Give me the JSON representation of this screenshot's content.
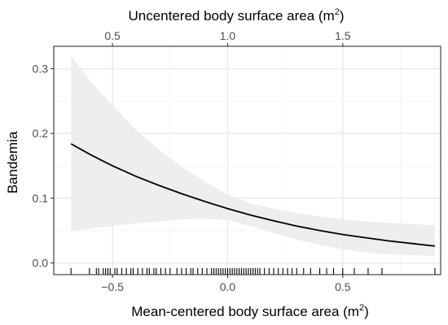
{
  "chart_data": {
    "type": "line",
    "xlabel_bottom": "Mean-centered body surface area (m",
    "xlabel_bottom_sup": "2",
    "xlabel_bottom_close": ")",
    "xlabel_top": "Uncentered body surface area (m",
    "xlabel_top_sup": "2",
    "xlabel_top_close": ")",
    "ylabel": "Bandemia",
    "xlim": [
      -0.755,
      0.925
    ],
    "ylim": [
      -0.018,
      0.3345
    ],
    "grid": true,
    "x_ticks": [
      {
        "value": -0.5,
        "label": "−0.5"
      },
      {
        "value": 0.0,
        "label": "0.0"
      },
      {
        "value": 0.5,
        "label": "0.5"
      }
    ],
    "top_ticks": [
      {
        "value": -0.5,
        "label": "0.5"
      },
      {
        "value": 0.0,
        "label": "1.0"
      },
      {
        "value": 0.5,
        "label": "1.5"
      }
    ],
    "y_ticks": [
      {
        "value": 0.0,
        "label": "0.0"
      },
      {
        "value": 0.1,
        "label": "0.1"
      },
      {
        "value": 0.2,
        "label": "0.2"
      },
      {
        "value": 0.3,
        "label": "0.3"
      }
    ],
    "series": [
      {
        "x": [
          -0.68,
          -0.6,
          -0.5,
          -0.4,
          -0.3,
          -0.2,
          -0.1,
          0.0,
          0.1,
          0.2,
          0.3,
          0.4,
          0.5,
          0.6,
          0.7,
          0.8,
          0.9
        ],
        "y": [
          0.184,
          0.168,
          0.15,
          0.134,
          0.12,
          0.107,
          0.095,
          0.084,
          0.074,
          0.065,
          0.057,
          0.05,
          0.044,
          0.039,
          0.034,
          0.03,
          0.026
        ],
        "lower": [
          0.049,
          0.053,
          0.057,
          0.061,
          0.064,
          0.067,
          0.068,
          0.066,
          0.057,
          0.046,
          0.036,
          0.028,
          0.021,
          0.016,
          0.013,
          0.012,
          0.011
        ],
        "upper": [
          0.32,
          0.283,
          0.243,
          0.206,
          0.176,
          0.149,
          0.126,
          0.106,
          0.092,
          0.084,
          0.077,
          0.072,
          0.067,
          0.064,
          0.062,
          0.06,
          0.058
        ]
      }
    ],
    "rug": [
      -0.68,
      -0.6,
      -0.57,
      -0.56,
      -0.54,
      -0.53,
      -0.52,
      -0.51,
      -0.49,
      -0.48,
      -0.46,
      -0.44,
      -0.42,
      -0.41,
      -0.39,
      -0.37,
      -0.35,
      -0.34,
      -0.32,
      -0.31,
      -0.29,
      -0.27,
      -0.25,
      -0.22,
      -0.2,
      -0.18,
      -0.16,
      -0.15,
      -0.13,
      -0.11,
      -0.09,
      -0.07,
      -0.06,
      -0.05,
      -0.04,
      -0.03,
      -0.02,
      -0.01,
      0.0,
      0.01,
      0.02,
      0.03,
      0.04,
      0.05,
      0.06,
      0.07,
      0.08,
      0.09,
      0.1,
      0.11,
      0.12,
      0.13,
      0.14,
      0.16,
      0.18,
      0.2,
      0.22,
      0.24,
      0.26,
      0.28,
      0.3,
      0.33,
      0.36,
      0.4,
      0.43,
      0.46,
      0.5,
      0.55,
      0.61,
      0.67,
      0.9
    ],
    "colors": {
      "line": "#000000",
      "band": "#ebebeb",
      "grid_major": "#ebebeb",
      "grid_minor": "#f2f2f2",
      "border": "#333333",
      "tick": "#333333",
      "rug": "#000000"
    }
  }
}
